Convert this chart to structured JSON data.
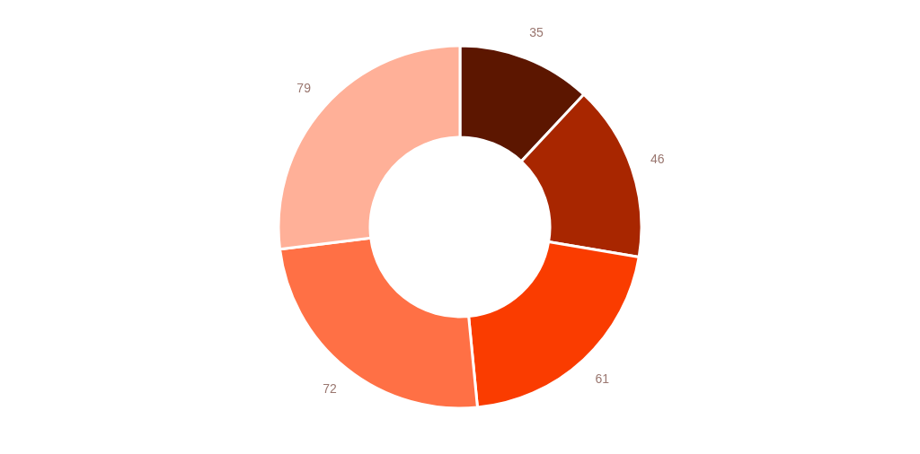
{
  "chart_data": {
    "type": "donut",
    "categories": [
      null,
      null,
      null,
      null,
      null
    ],
    "values": [
      35,
      46,
      61,
      72,
      79
    ],
    "colors": [
      "#5c1600",
      "#a82600",
      "#fa3c00",
      "#ff7045",
      "#ffb098"
    ],
    "data_labels": true
  }
}
